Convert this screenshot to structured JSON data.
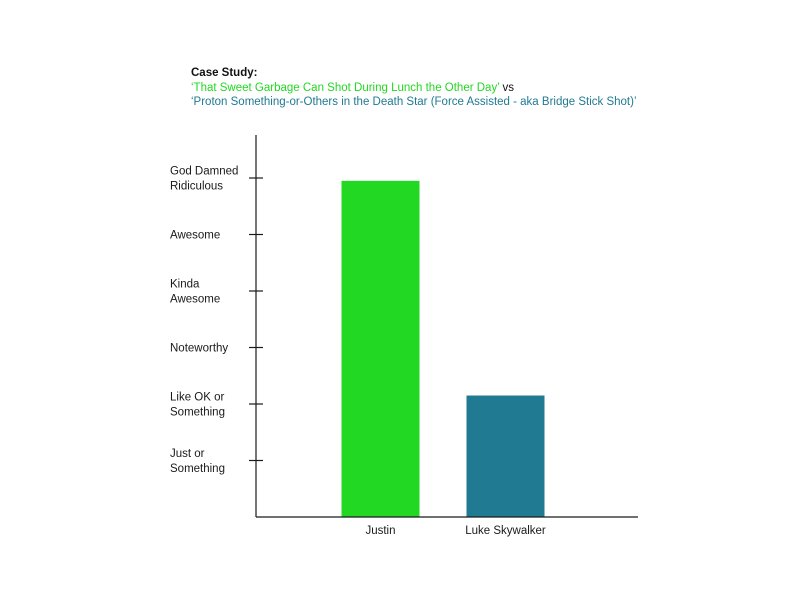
{
  "colors": {
    "series_a": "#22d822",
    "series_b": "#1f7a92",
    "axis": "#1a1a1a",
    "text": "#1a1a1a"
  },
  "chart_data": {
    "type": "bar",
    "title": "Case Study:",
    "subtitle_parts": [
      {
        "text": "‘That Sweet Garbage Can Shot During Lunch the Other Day’",
        "color": "#22d822"
      },
      {
        "text": "vs",
        "color": "#111111"
      },
      {
        "text": "‘Proton Something-or-Others in the Death Star (Force Assisted - aka Bridge Stick Shot)’",
        "color": "#1f7a92"
      }
    ],
    "categories": [
      "Justin",
      "Luke Skywalker"
    ],
    "values": [
      5.95,
      2.15
    ],
    "bar_colors": [
      "#22d822",
      "#1f7a92"
    ],
    "y_ticks": [
      1,
      2,
      3,
      4,
      5,
      6
    ],
    "y_tick_labels": [
      [
        "Just or",
        "Something"
      ],
      [
        "Like OK or",
        "Something"
      ],
      [
        "Noteworthy"
      ],
      [
        "Kinda",
        "Awesome"
      ],
      [
        "Awesome"
      ],
      [
        "God Damned",
        "Ridiculous"
      ]
    ],
    "ylim": [
      0,
      7.2
    ],
    "xlabel": "",
    "ylabel": "",
    "grid": false,
    "legend": "none"
  }
}
